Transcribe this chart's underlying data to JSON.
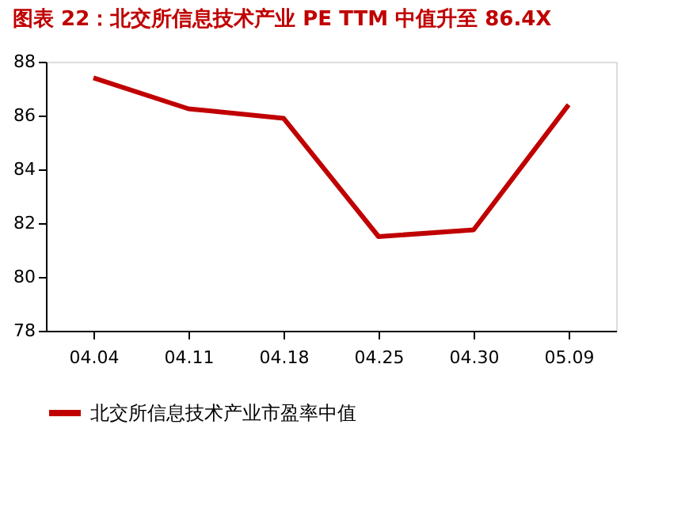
{
  "chart_data": {
    "type": "line",
    "title": "图表 22：北交所信息技术产业 PE TTM 中值升至 86.4X",
    "categories": [
      "04.04",
      "04.11",
      "04.18",
      "04.25",
      "04.30",
      "05.09"
    ],
    "series": [
      {
        "name": "北交所信息技术产业市盈率中值",
        "color": "#c00000",
        "values": [
          87.4,
          86.25,
          85.9,
          81.5,
          81.75,
          86.4
        ]
      }
    ],
    "ylim": [
      78,
      88
    ],
    "yticks": [
      78,
      80,
      82,
      84,
      86,
      88
    ],
    "grid": false,
    "legend": "bottom",
    "marker": "none",
    "line_style": "solid"
  }
}
